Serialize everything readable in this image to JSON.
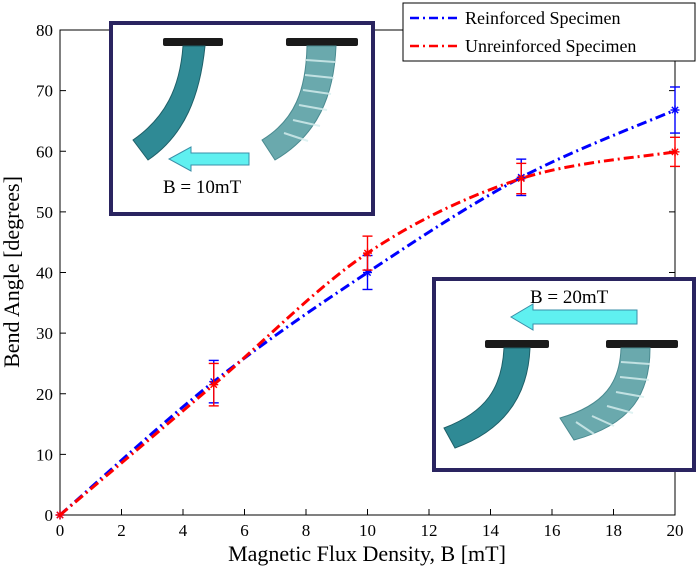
{
  "chart_data": {
    "type": "line",
    "title": "",
    "xlabel": "Magnetic Flux Density, B [mT]",
    "ylabel": "Bend Angle [degrees]",
    "xlim": [
      0,
      20
    ],
    "ylim": [
      0,
      80
    ],
    "xticks": [
      0,
      2,
      4,
      6,
      8,
      10,
      12,
      14,
      16,
      18,
      20
    ],
    "yticks": [
      0,
      10,
      20,
      30,
      40,
      50,
      60,
      70,
      80
    ],
    "legend_position": "top-right",
    "series": [
      {
        "name": "Reinforced Specimen",
        "color": "#0000ff",
        "line_style": "dash-dot",
        "x": [
          0,
          5,
          10,
          15,
          20
        ],
        "y": [
          0,
          22.0,
          40.0,
          55.7,
          66.8
        ],
        "err": [
          0,
          3.5,
          2.8,
          3.0,
          3.8
        ]
      },
      {
        "name": "Unreinforced Specimen",
        "color": "#ff0000",
        "line_style": "dash-dot",
        "x": [
          0,
          5,
          10,
          15,
          20
        ],
        "y": [
          0,
          21.5,
          43.2,
          55.5,
          59.9
        ],
        "err": [
          0,
          3.5,
          2.8,
          2.5,
          2.4
        ]
      }
    ],
    "insets": [
      {
        "label": "B = 10mT",
        "arrow_direction": "left",
        "position": "top-left"
      },
      {
        "label": "B = 20mT",
        "arrow_direction": "left",
        "position": "bottom-right"
      }
    ]
  },
  "colors": {
    "inset_border": "#2a2460",
    "arrow_fill": "#5ff0f0",
    "arrow_stroke": "#3a8fa8",
    "specimen_solid": "#2f8a95",
    "specimen_ribbed": "#6aa9ad",
    "clamp": "#1a1a1a"
  }
}
